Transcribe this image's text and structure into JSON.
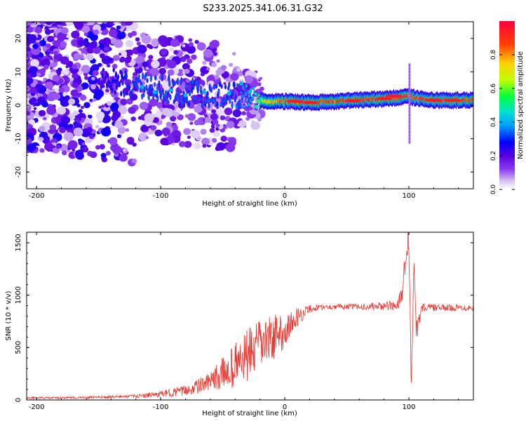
{
  "title": "S233.2025.341.06.31.G32",
  "chart_data": [
    {
      "type": "heatmap",
      "title": "S233.2025.341.06.31.G32",
      "xlabel": "Height of straight line (km)",
      "ylabel": "Frequency (Hz)",
      "xlim": [
        -208,
        152
      ],
      "ylim": [
        -25,
        25
      ],
      "xticks": [
        -200,
        -100,
        0,
        100
      ],
      "yticks": [
        -20,
        -10,
        0,
        10,
        20
      ],
      "colorbar": {
        "label": "Normalized spectral amplitude",
        "range": [
          0,
          1
        ],
        "ticks": [
          "0.0",
          "0.2",
          "0.4",
          "0.6",
          "0.8"
        ],
        "colors": [
          "#ffffff",
          "#d7c3f3",
          "#8a3bf0",
          "#5a00e0",
          "#0000ff",
          "#00a0ff",
          "#00e0d0",
          "#00ff40",
          "#c0ff00",
          "#ffd000",
          "#ff4000",
          "#ff0040"
        ]
      },
      "ridge": [
        {
          "x": -208,
          "f": 10,
          "amp": 0.2
        },
        {
          "x": -150,
          "f": 8,
          "amp": 0.25
        },
        {
          "x": -120,
          "f": 6,
          "amp": 0.35
        },
        {
          "x": -100,
          "f": 5,
          "amp": 0.35
        },
        {
          "x": -80,
          "f": 4,
          "amp": 0.35
        },
        {
          "x": -60,
          "f": 3,
          "amp": 0.35
        },
        {
          "x": -40,
          "f": 3,
          "amp": 0.35
        },
        {
          "x": -25,
          "f": 2,
          "amp": 0.45
        },
        {
          "x": -15,
          "f": 1,
          "amp": 0.75
        },
        {
          "x": 0,
          "f": 1.2,
          "amp": 0.95
        },
        {
          "x": 20,
          "f": 0.8,
          "amp": 0.95
        },
        {
          "x": 50,
          "f": 1.3,
          "amp": 0.97
        },
        {
          "x": 80,
          "f": 2.0,
          "amp": 0.97
        },
        {
          "x": 100,
          "f": 2.5,
          "amp": 0.97
        },
        {
          "x": 120,
          "f": 1.5,
          "amp": 0.97
        },
        {
          "x": 152,
          "f": 1.5,
          "amp": 0.95
        }
      ]
    },
    {
      "type": "line",
      "xlabel": "Height of straight line (km)",
      "ylabel": "SNR (10 * v/v)",
      "xlim": [
        -208,
        152
      ],
      "ylim": [
        0,
        1600
      ],
      "xticks": [
        -200,
        -100,
        0,
        100
      ],
      "yticks": [
        0,
        500,
        1000,
        1500
      ],
      "color": "#e8352e",
      "series": [
        {
          "name": "SNR",
          "x": [
            -208,
            -180,
            -150,
            -120,
            -100,
            -80,
            -60,
            -50,
            -40,
            -30,
            -20,
            -10,
            0,
            10,
            20,
            30,
            40,
            60,
            80,
            90,
            95,
            98,
            100,
            102,
            104,
            106,
            110,
            130,
            152
          ],
          "y": [
            20,
            20,
            25,
            35,
            55,
            90,
            170,
            250,
            330,
            420,
            520,
            600,
            650,
            790,
            870,
            885,
            890,
            890,
            895,
            895,
            1050,
            1500,
            1550,
            120,
            1350,
            620,
            880,
            880,
            880
          ],
          "noise": [
            10,
            10,
            12,
            15,
            30,
            50,
            90,
            160,
            220,
            260,
            240,
            220,
            160,
            90,
            40,
            25,
            25,
            30,
            40,
            60,
            100,
            150,
            150,
            80,
            150,
            120,
            40,
            30,
            30
          ]
        }
      ]
    }
  ]
}
